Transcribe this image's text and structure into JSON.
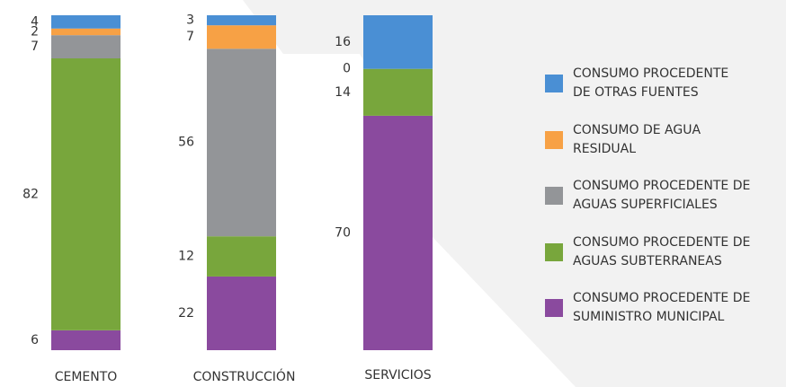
{
  "chart_data": {
    "type": "stacked-bar",
    "categories": [
      "CEMENTO",
      "CONSTRUCCIÓN",
      "SERVICIOS"
    ],
    "series": [
      {
        "name": "CONSUMO PROCEDENTE DE\nSUMINISTRO MUNICIPAL",
        "color": "#8a4a9e",
        "values": [
          6,
          22,
          70
        ]
      },
      {
        "name": "CONSUMO PROCEDENTE DE\nAGUAS SUBTERRANEAS",
        "color": "#78a63c",
        "values": [
          82,
          12,
          14
        ]
      },
      {
        "name": "CONSUMO PROCEDENTE DE\nAGUAS SUPERFICIALES",
        "color": "#939598",
        "values": [
          7,
          56,
          0
        ]
      },
      {
        "name": "CONSUMO DE AGUA\nRESIDUAL",
        "color": "#f7a145",
        "values": [
          2,
          7,
          null
        ]
      },
      {
        "name": "CONSUMO PROCEDENTE\nDE OTRAS FUENTES",
        "color": "#4a8fd4",
        "values": [
          4,
          3,
          16
        ]
      }
    ],
    "legend": "right"
  }
}
